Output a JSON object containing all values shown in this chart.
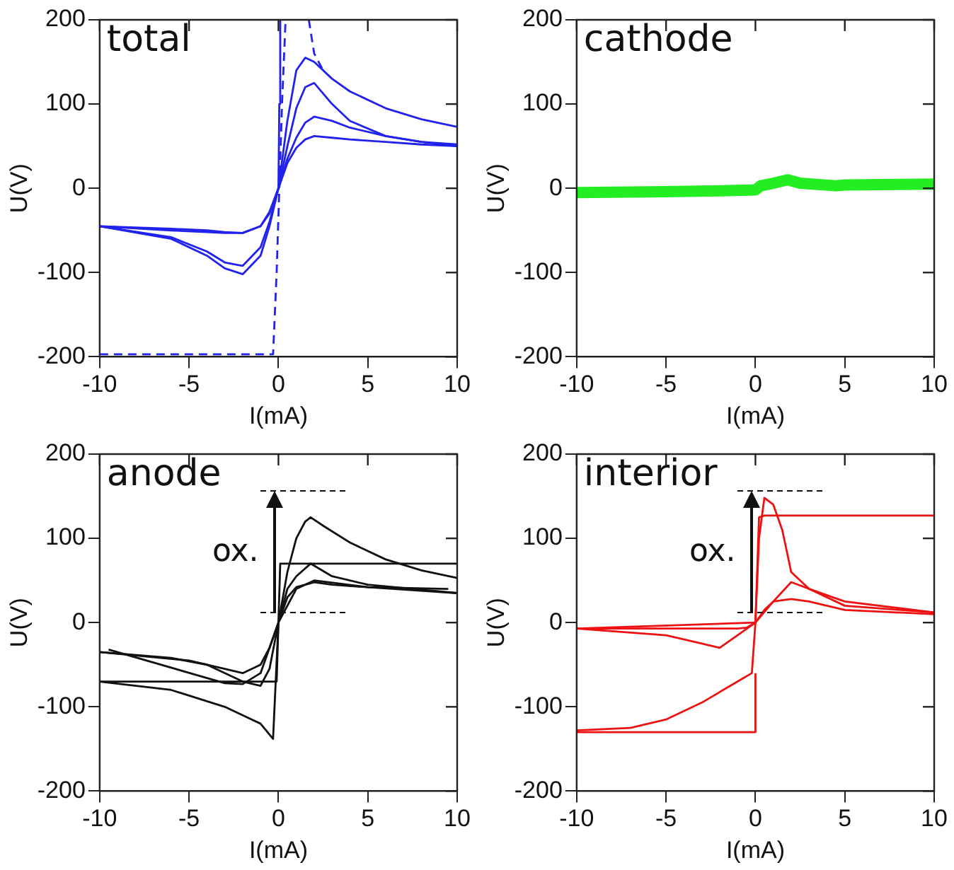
{
  "chart_data": [
    {
      "type": "line",
      "title": "total",
      "xlabel": "I(mA)",
      "ylabel": "U(V)",
      "xlim": [
        -10,
        10
      ],
      "xticks": [
        -10,
        -5,
        0,
        5,
        10
      ],
      "ylim": [
        -200,
        200
      ],
      "yticks": [
        -200,
        -100,
        0,
        100,
        200
      ],
      "legend": false,
      "marker": "none",
      "series": [
        {
          "color": "#2222ee",
          "x": [
            -10,
            -6,
            -4,
            -3,
            -2,
            -1,
            -0.5,
            0,
            0.5,
            1,
            1.5,
            2,
            3,
            4,
            6,
            8,
            10
          ],
          "values": [
            -45,
            -60,
            -80,
            -95,
            -102,
            -80,
            -45,
            0,
            80,
            140,
            155,
            150,
            130,
            115,
            95,
            82,
            73
          ]
        },
        {
          "color": "#2222ee",
          "x": [
            -10,
            -6,
            -4,
            -3,
            -2,
            -1,
            -0.5,
            0,
            0.5,
            1,
            1.5,
            2,
            3,
            4,
            6,
            8,
            10
          ],
          "values": [
            -45,
            -58,
            -75,
            -88,
            -92,
            -70,
            -40,
            0,
            50,
            95,
            120,
            125,
            100,
            80,
            62,
            55,
            52
          ]
        },
        {
          "color": "#2222ee",
          "x": [
            -10,
            -6,
            -4,
            -3,
            -2,
            -1,
            -0.5,
            0,
            0.5,
            1,
            1.5,
            2,
            3,
            4,
            6,
            8,
            10
          ],
          "values": [
            -45,
            -50,
            -52,
            -53,
            -53,
            -45,
            -30,
            0,
            35,
            60,
            78,
            85,
            80,
            72,
            62,
            55,
            50
          ]
        },
        {
          "color": "#2222ee",
          "x": [
            -10,
            -6,
            -4,
            -3,
            -2,
            -1,
            -0.5,
            0,
            0.5,
            1,
            1.5,
            2,
            3,
            4,
            6,
            8,
            10
          ],
          "values": [
            -45,
            -48,
            -50,
            -52,
            -53,
            -45,
            -28,
            0,
            30,
            48,
            58,
            62,
            60,
            58,
            55,
            52,
            50
          ]
        },
        {
          "color": "#2222ee",
          "x": [
            0,
            0.05,
            0.1
          ],
          "values": [
            0,
            100,
            200
          ]
        },
        {
          "color": "#2222ee",
          "line_style": "dashed",
          "x": [
            -10,
            -0.3,
            -0.1,
            0.2,
            0.4
          ],
          "values": [
            -197,
            -197,
            -100,
            100,
            200
          ]
        },
        {
          "color": "#2222ee",
          "line_style": "dashed",
          "x": [
            1.7,
            2,
            2.5
          ],
          "values": [
            200,
            160,
            140
          ]
        }
      ]
    },
    {
      "type": "line",
      "title": "cathode",
      "xlabel": "I(mA)",
      "ylabel": "U(V)",
      "xlim": [
        -10,
        10
      ],
      "xticks": [
        -10,
        -5,
        0,
        5,
        10
      ],
      "ylim": [
        -200,
        200
      ],
      "yticks": [
        -200,
        -100,
        0,
        100,
        200
      ],
      "legend": false,
      "marker": "none",
      "series": [
        {
          "color": "#22ee22",
          "x": [
            -10,
            -5,
            -2,
            0,
            0.3,
            1,
            1.8,
            2.5,
            4.5,
            5,
            10
          ],
          "values": [
            -5,
            -4,
            -3,
            -2,
            3,
            6,
            10,
            6,
            3,
            4,
            5
          ]
        }
      ]
    },
    {
      "type": "line",
      "title": "anode",
      "xlabel": "I(mA)",
      "ylabel": "U(V)",
      "xlim": [
        -10,
        10
      ],
      "xticks": [
        -10,
        -5,
        0,
        5,
        10
      ],
      "ylim": [
        -200,
        200
      ],
      "yticks": [
        -200,
        -100,
        0,
        100,
        200
      ],
      "legend": false,
      "marker": "none",
      "annotations": [
        "ox."
      ],
      "series": [
        {
          "color": "#111111",
          "x": [
            -10,
            -6,
            -4,
            -2,
            -1,
            -0.5,
            0,
            0.5,
            1,
            1.5,
            1.8,
            2.5,
            4,
            6,
            8,
            10
          ],
          "values": [
            -35,
            -42,
            -50,
            -70,
            -75,
            -55,
            0,
            60,
            100,
            120,
            125,
            115,
            95,
            75,
            62,
            53
          ]
        },
        {
          "color": "#111111",
          "x": [
            -10,
            -0.1,
            0,
            0.1,
            10
          ],
          "values": [
            -70,
            -70,
            0,
            70,
            70
          ]
        },
        {
          "color": "#111111",
          "x": [
            -10,
            -6,
            -3,
            -1,
            -0.3,
            0,
            0.5,
            1,
            1.8,
            3,
            5,
            10
          ],
          "values": [
            -70,
            -80,
            -100,
            -120,
            -138,
            0,
            40,
            55,
            70,
            55,
            45,
            35
          ]
        },
        {
          "color": "#111111",
          "x": [
            -10,
            -5,
            -3,
            -2,
            -1,
            -0.5,
            0,
            0.5,
            1,
            2,
            3,
            5,
            10
          ],
          "values": [
            -35,
            -45,
            -55,
            -60,
            -50,
            -30,
            0,
            30,
            42,
            48,
            45,
            42,
            35
          ]
        },
        {
          "color": "#111111",
          "x": [
            -9.5,
            -3,
            -2,
            -1,
            0,
            1,
            2,
            5,
            9.5
          ],
          "values": [
            -32,
            -72,
            -73,
            -60,
            0,
            40,
            50,
            42,
            40
          ]
        }
      ]
    },
    {
      "type": "line",
      "title": "interior",
      "xlabel": "I(mA)",
      "ylabel": "U(V)",
      "xlim": [
        -10,
        10
      ],
      "xticks": [
        -10,
        -5,
        0,
        5,
        10
      ],
      "ylim": [
        -200,
        200
      ],
      "yticks": [
        -200,
        -100,
        0,
        100,
        200
      ],
      "legend": false,
      "marker": "none",
      "annotations": [
        "ox."
      ],
      "series": [
        {
          "color": "#ee1111",
          "x": [
            -10,
            -2,
            -1,
            -0.5,
            0,
            0.2,
            0.5,
            1,
            1.5,
            2,
            3,
            5,
            10
          ],
          "values": [
            -7,
            -7,
            -7,
            -6,
            0,
            100,
            148,
            140,
            110,
            60,
            40,
            25,
            12
          ]
        },
        {
          "color": "#ee1111",
          "x": [
            -10,
            -5,
            -3,
            -2,
            -1,
            0,
            1,
            2,
            3,
            5,
            10
          ],
          "values": [
            -7,
            -15,
            -25,
            -30,
            -15,
            0,
            25,
            48,
            40,
            20,
            12
          ]
        },
        {
          "color": "#ee1111",
          "x": [
            -10,
            -7,
            -5,
            -3,
            -1,
            -0.2,
            0,
            0.2,
            0.5,
            10
          ],
          "values": [
            -128,
            -125,
            -115,
            -95,
            -70,
            -60,
            0,
            125,
            127,
            127
          ]
        },
        {
          "color": "#ee1111",
          "x": [
            -10,
            0,
            0
          ],
          "values": [
            -130,
            -130,
            -60
          ]
        },
        {
          "color": "#ee1111",
          "x": [
            -10,
            0,
            0.5,
            1,
            2,
            3,
            5,
            10
          ],
          "values": [
            -7,
            0,
            15,
            25,
            28,
            25,
            15,
            10
          ]
        }
      ]
    }
  ]
}
